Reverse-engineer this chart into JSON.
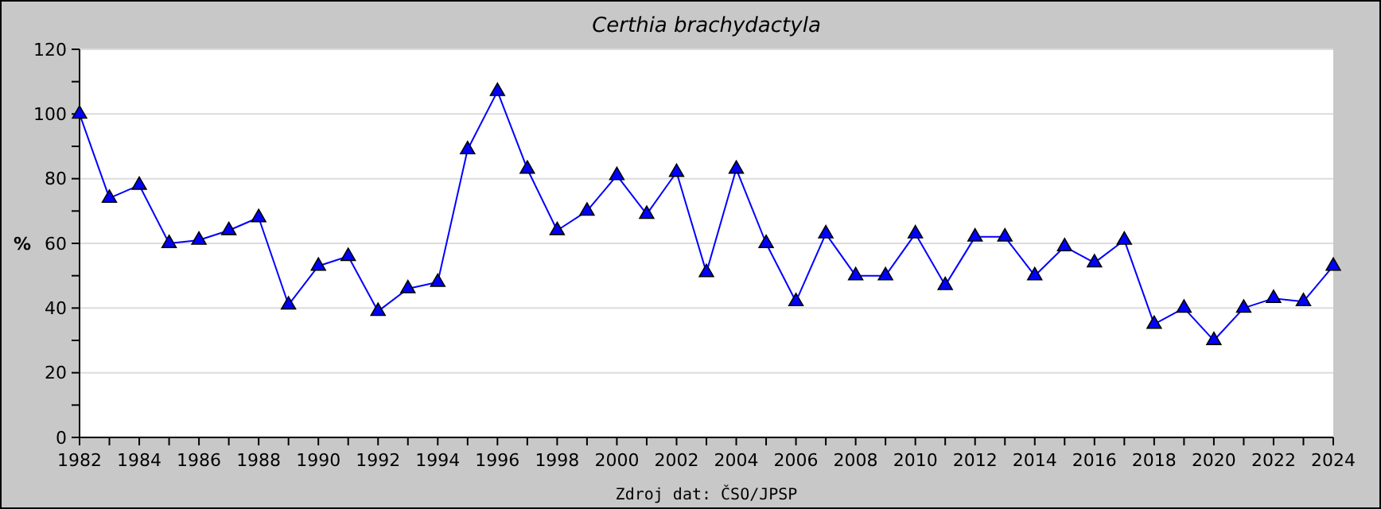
{
  "chart_data": {
    "type": "line",
    "title": "Certhia brachydactyla",
    "ylabel": "%",
    "annotations": [
      "Zdroj dat: ČSO/JPSP"
    ],
    "x": [
      1982,
      1983,
      1984,
      1985,
      1986,
      1987,
      1988,
      1989,
      1990,
      1991,
      1992,
      1993,
      1994,
      1995,
      1996,
      1997,
      1998,
      1999,
      2000,
      2001,
      2002,
      2003,
      2004,
      2005,
      2006,
      2007,
      2008,
      2009,
      2010,
      2011,
      2012,
      2013,
      2014,
      2015,
      2016,
      2017,
      2018,
      2019,
      2020,
      2021,
      2022,
      2023,
      2024
    ],
    "series": [
      {
        "color": "#0000ff",
        "values": [
          100,
          74,
          78,
          60,
          61,
          64,
          68,
          41,
          53,
          56,
          39,
          46,
          48,
          89,
          107,
          83,
          64,
          70,
          81,
          69,
          82,
          51,
          83,
          60,
          42,
          63,
          50,
          50,
          63,
          47,
          62,
          62,
          50,
          59,
          54,
          61,
          35,
          40,
          30,
          40,
          43,
          42,
          53
        ]
      }
    ],
    "xlim": [
      1982,
      2024
    ],
    "xticks": [
      1982,
      {
        "value": 1983,
        "label": null
      },
      1984,
      {
        "value": 1985,
        "label": null
      },
      1986,
      {
        "value": 1987,
        "label": null
      },
      1988,
      {
        "value": 1989,
        "label": null
      },
      1990,
      {
        "value": 1991,
        "label": null
      },
      1992,
      {
        "value": 1993,
        "label": null
      },
      1994,
      {
        "value": 1995,
        "label": null
      },
      1996,
      {
        "value": 1997,
        "label": null
      },
      1998,
      {
        "value": 1999,
        "label": null
      },
      2000,
      {
        "value": 2001,
        "label": null
      },
      2002,
      {
        "value": 2003,
        "label": null
      },
      2004,
      {
        "value": 2005,
        "label": null
      },
      2006,
      {
        "value": 2007,
        "label": null
      },
      2008,
      {
        "value": 2009,
        "label": null
      },
      2010,
      {
        "value": 2011,
        "label": null
      },
      2012,
      {
        "value": 2013,
        "label": null
      },
      2014,
      {
        "value": 2015,
        "label": null
      },
      2016,
      {
        "value": 2017,
        "label": null
      },
      2018,
      {
        "value": 2019,
        "label": null
      },
      2020,
      {
        "value": 2021,
        "label": null
      },
      2022,
      {
        "value": 2023,
        "label": null
      },
      2024
    ],
    "ylim": [
      0,
      120
    ],
    "yticks": [
      0,
      {
        "value": 10,
        "label": null
      },
      20,
      {
        "value": 30,
        "label": null
      },
      40,
      {
        "value": 50,
        "label": null
      },
      60,
      {
        "value": 70,
        "label": null
      },
      80,
      {
        "value": 90,
        "label": null
      },
      100,
      {
        "value": 110,
        "label": null
      },
      120
    ],
    "grid": "y",
    "marker": "triangle",
    "line_style": "solid"
  }
}
